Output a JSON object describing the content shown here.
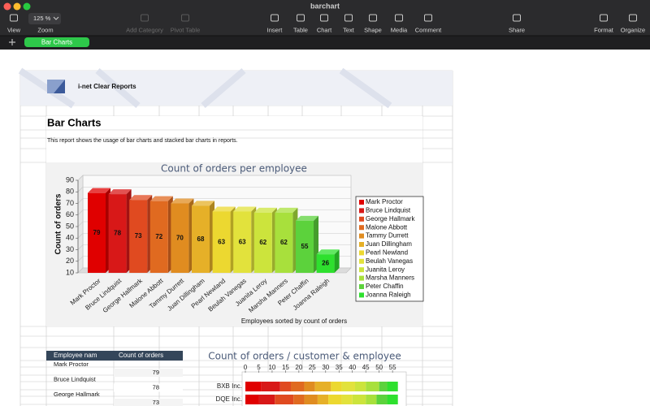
{
  "window": {
    "title": "barchart"
  },
  "toolbar": {
    "zoom": "125 %",
    "items": [
      "View",
      "Zoom",
      "Add Category",
      "Pivot Table",
      "Insert",
      "Table",
      "Chart",
      "Text",
      "Shape",
      "Media",
      "Comment",
      "Share",
      "Format",
      "Organize"
    ]
  },
  "sheet_tab": "Bar Charts",
  "report": {
    "brand": "i-net Clear Reports",
    "heading": "Bar Charts",
    "description": "This report shows the usage of bar charts and stacked bar charts in reports."
  },
  "chart_data": [
    {
      "type": "bar3d",
      "title": "Count of orders per employee",
      "y_label": "Count of orders",
      "x_label": "Employees sorted by count of orders",
      "categories": [
        "Mark Proctor",
        "Bruce Lindquist",
        "George Hallmark",
        "Malone Abbott",
        "Tammy Durrett",
        "Juan Dillingham",
        "Pearl Newland",
        "Beulah Vanegas",
        "Juanita Leroy",
        "Marsha Manners",
        "Peter Chaffin",
        "Joanna Raleigh"
      ],
      "values": [
        79,
        78,
        73,
        72,
        70,
        68,
        63,
        63,
        62,
        62,
        55,
        26
      ],
      "colors": [
        "#e00000",
        "#d81818",
        "#e04a20",
        "#e06a20",
        "#e08c20",
        "#e6b028",
        "#ecd830",
        "#e2e23c",
        "#cce43c",
        "#a8e03c",
        "#5cd23c",
        "#2ee02e"
      ],
      "ylim": [
        10,
        90
      ],
      "yticks": [
        10,
        20,
        30,
        40,
        50,
        60,
        70,
        80,
        90
      ],
      "grid": true,
      "legend": "right"
    },
    {
      "type": "stacked_bar",
      "title": "Count of orders / customer & employee",
      "categories": [
        "BXB Inc.",
        "DQE Inc."
      ],
      "series": [
        {
          "color": "#e00000",
          "values": [
            6,
            5
          ]
        },
        {
          "color": "#d81818",
          "values": [
            7,
            6
          ]
        },
        {
          "color": "#e04a20",
          "values": [
            4,
            7
          ]
        },
        {
          "color": "#e06a20",
          "values": [
            5,
            4
          ]
        },
        {
          "color": "#e08c20",
          "values": [
            4,
            5
          ]
        },
        {
          "color": "#e6b028",
          "values": [
            6,
            4
          ]
        },
        {
          "color": "#ecd830",
          "values": [
            4,
            5
          ]
        },
        {
          "color": "#e2e23c",
          "values": [
            5,
            4
          ]
        },
        {
          "color": "#cce43c",
          "values": [
            4,
            5
          ]
        },
        {
          "color": "#a8e03c",
          "values": [
            5,
            4
          ]
        },
        {
          "color": "#5cd23c",
          "values": [
            3,
            4
          ]
        },
        {
          "color": "#2ee02e",
          "values": [
            4,
            4
          ]
        }
      ],
      "xlim": [
        0,
        58
      ],
      "xticks": [
        0,
        5,
        10,
        15,
        20,
        25,
        30,
        35,
        40,
        45,
        50,
        55
      ]
    }
  ],
  "table": {
    "headers": [
      "Employee nam",
      "Count of orders"
    ],
    "rows": [
      [
        "Mark Proctor",
        79
      ],
      [
        "Bruce Lindquist",
        78
      ],
      [
        "George Hallmark",
        73
      ]
    ]
  }
}
